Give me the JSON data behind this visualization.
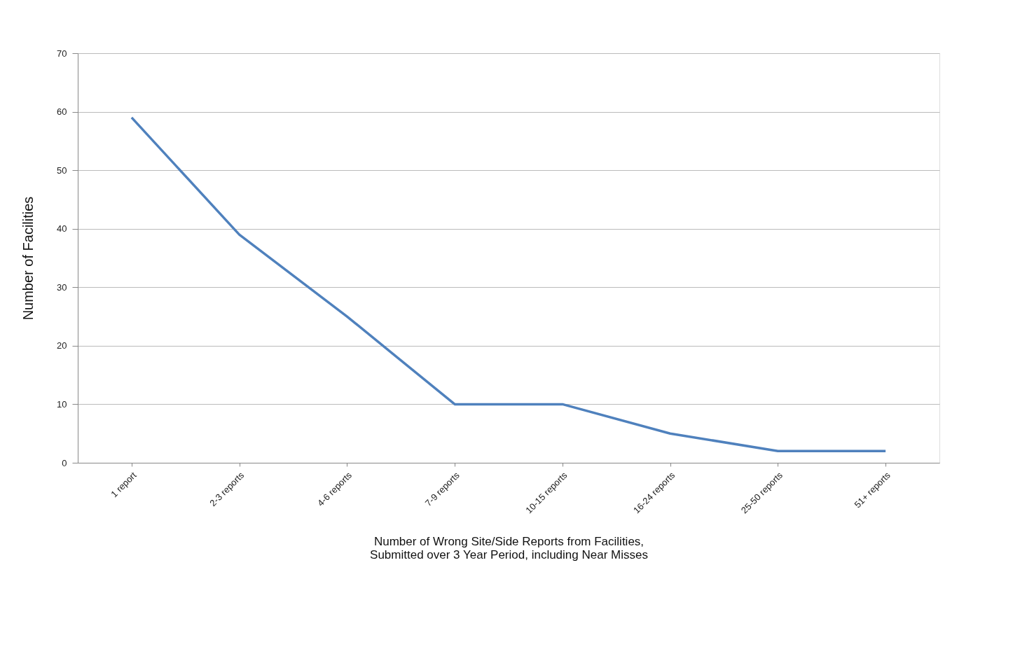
{
  "chart_data": {
    "type": "line",
    "xlabel": "Number of Wrong Site/Side Reports from Facilities,\nSubmitted over 3 Year Period, including Near Misses",
    "ylabel": "Number of Facilities",
    "categories": [
      "1 report",
      "2-3 reports",
      "4-6 reports",
      "7-9 reports",
      "10-15 reports",
      "16-24 reports",
      "25-50 reports",
      "51+ reports"
    ],
    "series": [
      {
        "color": "#4f81bd",
        "values": [
          59,
          39,
          25,
          10,
          10,
          5,
          2,
          2
        ]
      }
    ],
    "ylim": [
      0,
      70
    ],
    "yticks": [
      0,
      10,
      20,
      30,
      40,
      50,
      60,
      70
    ],
    "grid": "y",
    "legend": false,
    "marker": "none",
    "line_style": "solid"
  }
}
